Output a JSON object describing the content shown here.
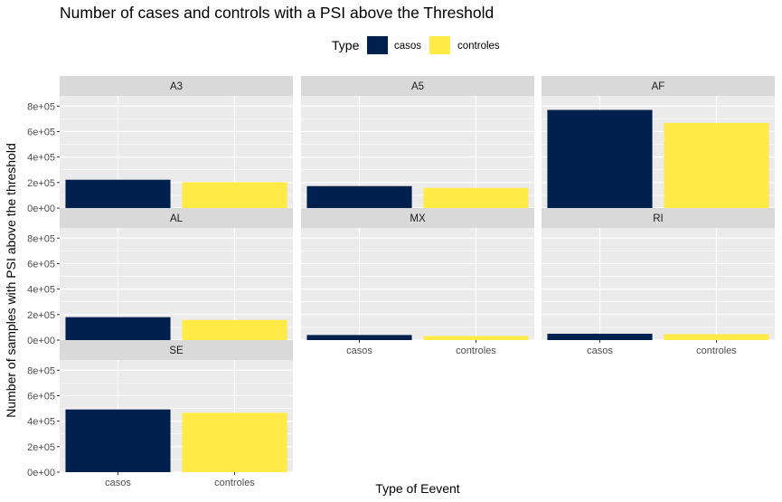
{
  "chart_data": {
    "type": "bar",
    "title": "Number of cases and controls with a PSI above the Threshold",
    "xlabel": "Type of Eevent",
    "ylabel": "Number of samples with PSI above the threshold",
    "categories": [
      "casos",
      "controles"
    ],
    "ylim": [
      0,
      880000
    ],
    "yticks": [
      0,
      200000,
      400000,
      600000,
      800000
    ],
    "ytick_labels": [
      "0e+00",
      "2e+05",
      "4e+05",
      "6e+05",
      "8e+05"
    ],
    "grid": true,
    "legend": {
      "title": "Type",
      "position": "top",
      "entries": [
        {
          "label": "casos",
          "color": "#00204D"
        },
        {
          "label": "controles",
          "color": "#FFEA46"
        }
      ]
    },
    "panels": [
      {
        "label": "A3",
        "values": [
          222000,
          202000
        ]
      },
      {
        "label": "A5",
        "values": [
          172000,
          158000
        ]
      },
      {
        "label": "AF",
        "values": [
          770000,
          668000
        ]
      },
      {
        "label": "AL",
        "values": [
          180000,
          158000
        ]
      },
      {
        "label": "MX",
        "values": [
          40000,
          32000
        ]
      },
      {
        "label": "RI",
        "values": [
          50000,
          46000
        ]
      },
      {
        "label": "SE",
        "values": [
          492000,
          466000
        ]
      }
    ]
  },
  "colors": {
    "casos": "#00204D",
    "controles": "#FFEA46",
    "panel_bg": "#EBEBEB",
    "strip_bg": "#D9D9D9",
    "grid": "#FFFFFF"
  }
}
